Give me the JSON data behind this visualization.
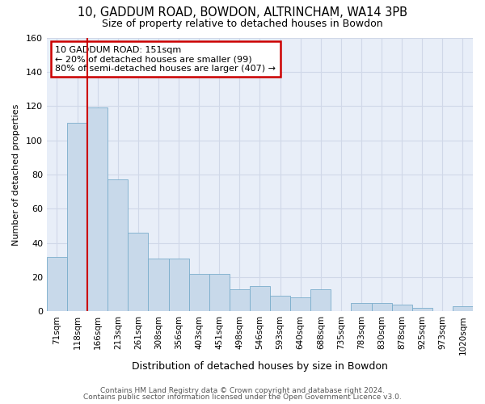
{
  "title_line1": "10, GADDUM ROAD, BOWDON, ALTRINCHAM, WA14 3PB",
  "title_line2": "Size of property relative to detached houses in Bowdon",
  "xlabel": "Distribution of detached houses by size in Bowdon",
  "ylabel": "Number of detached properties",
  "footer_line1": "Contains HM Land Registry data © Crown copyright and database right 2024.",
  "footer_line2": "Contains public sector information licensed under the Open Government Licence v3.0.",
  "categories": [
    "71sqm",
    "118sqm",
    "166sqm",
    "213sqm",
    "261sqm",
    "308sqm",
    "356sqm",
    "403sqm",
    "451sqm",
    "498sqm",
    "546sqm",
    "593sqm",
    "640sqm",
    "688sqm",
    "735sqm",
    "783sqm",
    "830sqm",
    "878sqm",
    "925sqm",
    "973sqm",
    "1020sqm"
  ],
  "bar_heights": [
    32,
    110,
    119,
    77,
    46,
    31,
    31,
    22,
    22,
    13,
    15,
    9,
    8,
    13,
    0,
    5,
    5,
    4,
    2,
    0,
    3
  ],
  "bar_color": "#c8d9ea",
  "bar_edge_color": "#7aadcc",
  "vline_x": 1.5,
  "vline_color": "#cc0000",
  "annotation_text_line1": "10 GADDUM ROAD: 151sqm",
  "annotation_text_line2": "← 20% of detached houses are smaller (99)",
  "annotation_text_line3": "80% of semi-detached houses are larger (407) →",
  "annotation_box_color": "#cc0000",
  "ylim": [
    0,
    160
  ],
  "yticks": [
    0,
    20,
    40,
    60,
    80,
    100,
    120,
    140,
    160
  ],
  "grid_color": "#d0d8e8",
  "bg_color": "#e8eef8",
  "fig_bg_color": "#ffffff"
}
